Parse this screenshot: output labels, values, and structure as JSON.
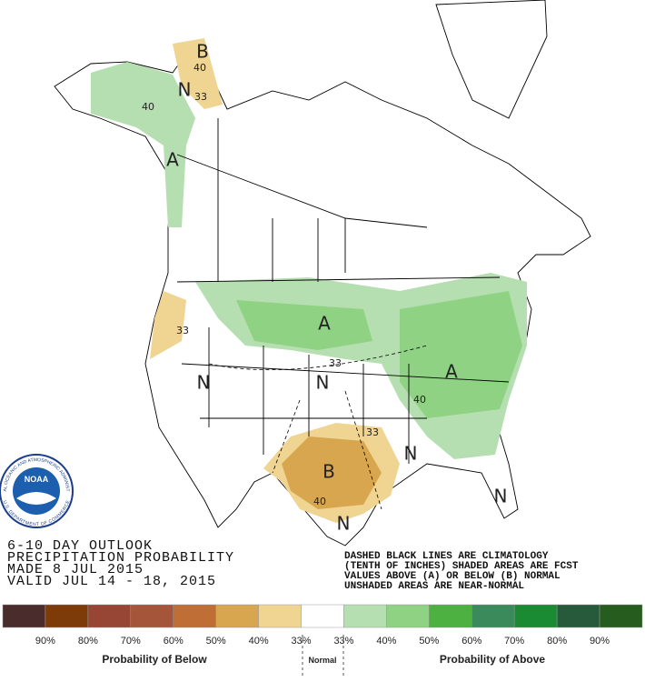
{
  "logo": {
    "name": "NOAA",
    "ring_top": "NATIONAL OCEANIC AND ATMOSPHERIC ADMINISTRATION",
    "ring_bottom": "U.S. DEPARTMENT OF COMMERCE"
  },
  "map": {
    "labels": [
      "B",
      "40",
      "N",
      "33",
      "40",
      "A",
      "33",
      "A",
      "33",
      "N",
      "N",
      "A",
      "40",
      "33",
      "B",
      "40",
      "N",
      "N",
      "N"
    ]
  },
  "title": {
    "lines": [
      "6-10 DAY OUTLOOK",
      "PRECIPITATION PROBABILITY",
      "MADE  8 JUL 2015",
      "VALID  JUL 14 - 18, 2015"
    ]
  },
  "note": {
    "lines": [
      "DASHED BLACK LINES ARE CLIMATOLOGY",
      "(TENTH OF INCHES) SHADED AREAS ARE FCST",
      "VALUES ABOVE (A) OR BELOW (B) NORMAL",
      "UNSHADED AREAS ARE NEAR-NORMAL"
    ]
  },
  "legend": {
    "colors": [
      "#4a2c2c",
      "#7e3b0a",
      "#974535",
      "#a5553a",
      "#bf6e35",
      "#d8a64e",
      "#efd492",
      "#ffffff",
      "#b5dfb0",
      "#8fd283",
      "#4cb140",
      "#3b8a5c",
      "#1a8a33",
      "#265a3a",
      "#265c1e"
    ],
    "ticks": [
      "90%",
      "80%",
      "70%",
      "60%",
      "50%",
      "40%",
      "33%",
      "33%",
      "40%",
      "50%",
      "60%",
      "70%",
      "80%",
      "90%"
    ],
    "below": "Probability of Below",
    "normal": "Normal",
    "above": "Probability of Above"
  }
}
